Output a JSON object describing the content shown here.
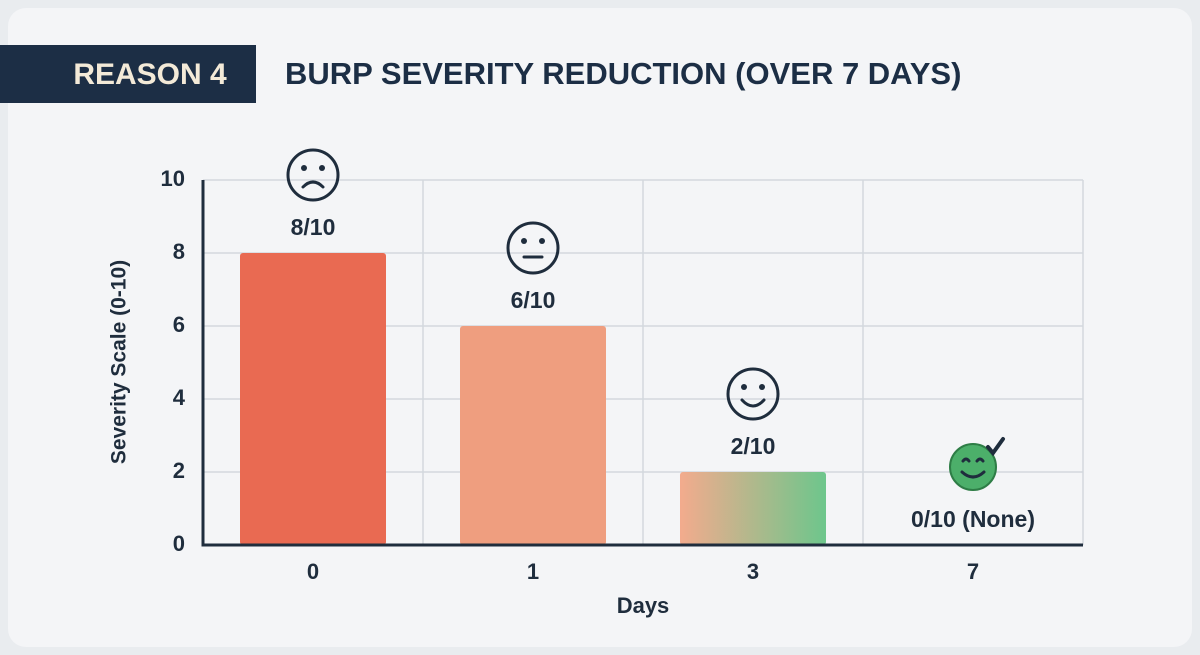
{
  "header": {
    "tag": "REASON 4"
  },
  "chart_data": {
    "type": "bar",
    "title": "BURP SEVERITY REDUCTION (OVER 7 DAYS)",
    "categories": [
      "0",
      "1",
      "3",
      "7"
    ],
    "values": [
      8,
      6,
      2,
      0
    ],
    "value_labels": [
      "8/10",
      "6/10",
      "2/10",
      "0/10 (None)"
    ],
    "colors": [
      "#e96a52",
      "#ef9e7f",
      [
        "#f3ab8d",
        "#6dc68c"
      ],
      "#3fa55e"
    ],
    "x_label": "Days",
    "y_label": "Severity Scale (0-10)",
    "ylim": [
      0,
      10
    ],
    "yticks": [
      0,
      2,
      4,
      6,
      8,
      10
    ],
    "grid": true
  }
}
